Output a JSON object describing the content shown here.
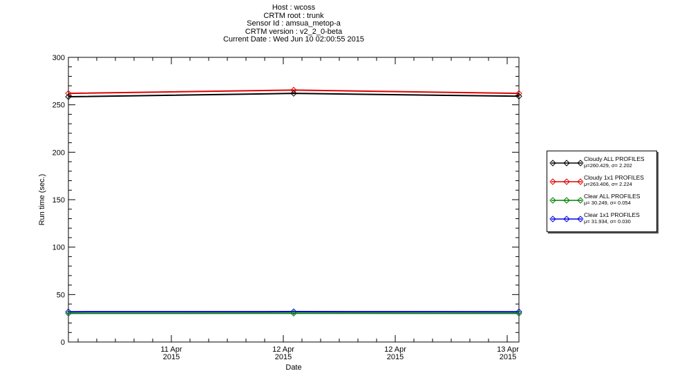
{
  "title_lines": [
    "Host : wcoss",
    "CRTM root : trunk",
    "Sensor Id : amsua_metop-a",
    "CRTM version : v2_2_0-beta",
    "Current Date : Wed Jun 10 02:00:55 2015"
  ],
  "chart_data": {
    "type": "line",
    "xlabel": "Date",
    "ylabel": "Run time (sec.)",
    "ylim": [
      0,
      300
    ],
    "yticks": [
      0,
      50,
      100,
      150,
      200,
      250,
      300
    ],
    "x_tick_labels": [
      {
        "line1": "11 Apr",
        "line2": "2015"
      },
      {
        "line1": "12 Apr",
        "line2": "2015"
      },
      {
        "line1": "12 Apr",
        "line2": "2015"
      },
      {
        "line1": "13 Apr",
        "line2": "2015"
      }
    ],
    "grid": false,
    "legend_position": "right",
    "series": [
      {
        "name": "Cloudy ALL PROFILES",
        "stats": "μ=260.429, σ= 2.202",
        "color": "#000000",
        "points": [
          [
            0,
            258.5
          ],
          [
            0.5,
            262
          ],
          [
            1,
            259
          ]
        ]
      },
      {
        "name": "Cloudy 1x1 PROFILES",
        "stats": "μ=263.406, σ= 2.224",
        "color": "#e00000",
        "points": [
          [
            0,
            262
          ],
          [
            0.5,
            265.5
          ],
          [
            1,
            262
          ]
        ]
      },
      {
        "name": "Clear ALL PROFILES",
        "stats": "μ= 30.249, σ= 0.054",
        "color": "#008000",
        "points": [
          [
            0,
            30.2
          ],
          [
            0.5,
            30.3
          ],
          [
            1,
            30.2
          ]
        ]
      },
      {
        "name": "Clear 1x1 PROFILES",
        "stats": "μ= 31.934, σ= 0.030",
        "color": "#0000e0",
        "points": [
          [
            0,
            31.9
          ],
          [
            0.5,
            32.0
          ],
          [
            1,
            31.9
          ]
        ]
      }
    ]
  }
}
